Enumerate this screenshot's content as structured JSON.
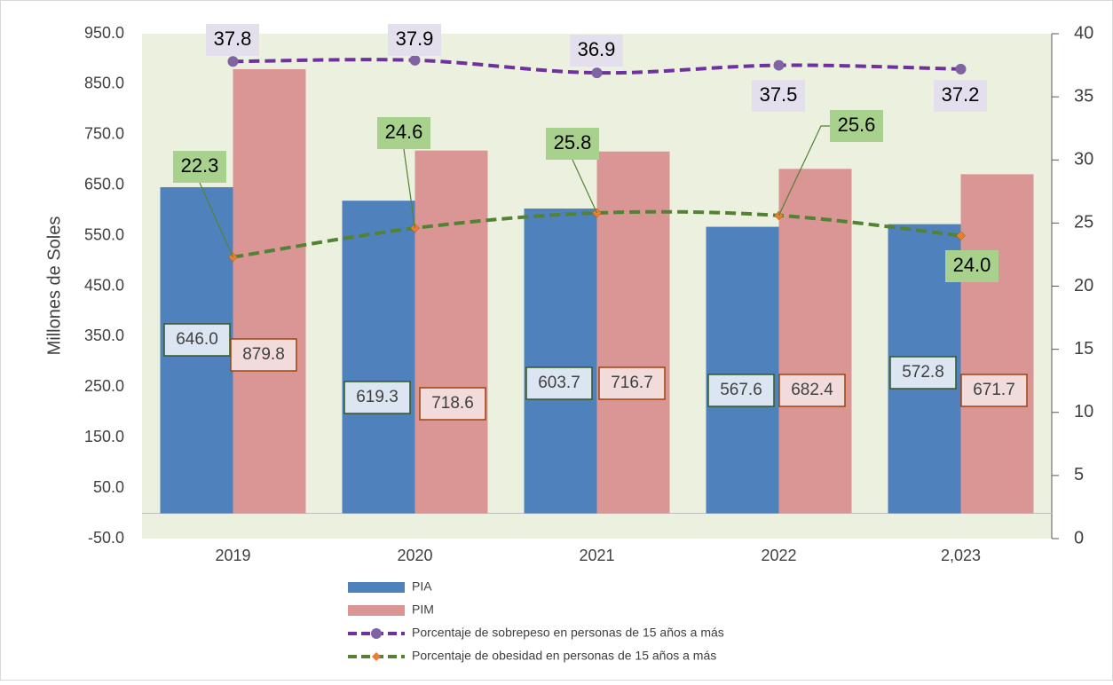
{
  "chart_data": {
    "type": "bar",
    "y_label": "Millones de Soles",
    "categories": [
      "2019",
      "2020",
      "2021",
      "2022",
      "2,023"
    ],
    "ylim": [
      -50,
      950
    ],
    "yticks": [
      {
        "value": -50,
        "label": "-50.0"
      },
      {
        "value": 50,
        "label": "50.0"
      },
      {
        "value": 150,
        "label": "150.0"
      },
      {
        "value": 250,
        "label": "250.0"
      },
      {
        "value": 350,
        "label": "350.0"
      },
      {
        "value": 450,
        "label": "450.0"
      },
      {
        "value": 550,
        "label": "550.0"
      },
      {
        "value": 650,
        "label": "650.0"
      },
      {
        "value": 750,
        "label": "750.0"
      },
      {
        "value": 850,
        "label": "850.0"
      },
      {
        "value": 950,
        "label": "950.0"
      }
    ],
    "y2lim": [
      0,
      40
    ],
    "y2ticks": [
      0,
      5,
      10,
      15,
      20,
      25,
      30,
      35,
      40
    ],
    "series": [
      {
        "name": "PIA",
        "type": "bar",
        "color": "#4f81bd",
        "values": [
          646.0,
          619.3,
          603.7,
          567.6,
          572.8
        ],
        "value_labels": [
          "646.0",
          "619.3",
          "603.7",
          "567.6",
          "572.8"
        ]
      },
      {
        "name": "PIM",
        "type": "bar",
        "color": "#d99694",
        "values": [
          879.8,
          718.6,
          716.7,
          682.4,
          671.7
        ],
        "value_labels": [
          "879.8",
          "718.6",
          "716.7",
          "682.4",
          "671.7"
        ]
      },
      {
        "name": "Porcentaje de sobrepeso en personas de 15 años a más",
        "type": "line",
        "axis": "y2",
        "color": "#7030a0",
        "marker_color": "#8064a2",
        "values": [
          37.8,
          37.9,
          36.9,
          37.5,
          37.2
        ],
        "value_labels": [
          "37.8",
          "37.9",
          "36.9",
          "37.5",
          "37.2"
        ]
      },
      {
        "name": "Porcentaje de obesidad en personas de 15 años a más",
        "type": "line",
        "axis": "y2",
        "color": "#548235",
        "marker_color": "#ed7d31",
        "values": [
          22.3,
          24.6,
          25.8,
          25.6,
          24.0
        ],
        "value_labels": [
          "22.3",
          "24.6",
          "25.8",
          "25.6",
          "24.0"
        ]
      }
    ]
  }
}
